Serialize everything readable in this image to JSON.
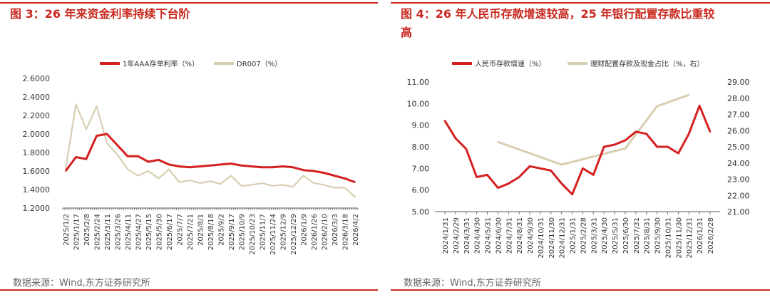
{
  "colors": {
    "accent": "#c8281e",
    "series_red": "#d42020",
    "series_beige": "#d8cfb2",
    "axis": "#595959"
  },
  "left": {
    "title": "图 3：26 年来资金利率持续下台阶",
    "source": "数据来源：Wind,东方证券研究所"
  },
  "right": {
    "title_line1": "图 4：26 年人民币存款增速较高，25 年银行配置存款比重较",
    "title_line2": "高",
    "source": "数据来源：Wind,东方证券研究所"
  },
  "chart_data": [
    {
      "type": "line",
      "title": "",
      "legend_position": "top",
      "ylim": [
        1.2,
        2.6
      ],
      "y_ticks": [
        "2.6000",
        "2.4000",
        "2.2000",
        "2.0000",
        "1.8000",
        "1.6000",
        "1.4000",
        "1.2000"
      ],
      "x_tick_labels": [
        "2025/1/2",
        "2025/1/17",
        "2025/2/8",
        "2025/2/24",
        "2025/3/11",
        "2025/3/26",
        "2025/4/11",
        "2025/4/27",
        "2025/5/15",
        "2025/5/30",
        "2025/6/17",
        "2025/7/7",
        "2025/7/21",
        "2025/8/1",
        "2025/8/18",
        "2025/9/2",
        "2025/9/17",
        "2025/10/9",
        "2025/10/23",
        "2025/11/7",
        "2025/11/24",
        "2025/12/9",
        "2025/12/29",
        "2026/1/9",
        "2026/1/26",
        "2026/2/10",
        "2026/3/3",
        "2026/3/18",
        "2026/4/2"
      ],
      "series": [
        {
          "name": "1年AAA存单利率（%）",
          "color": "#d42020",
          "values": [
            1.6,
            1.75,
            1.73,
            1.98,
            2.0,
            1.88,
            1.76,
            1.76,
            1.7,
            1.72,
            1.67,
            1.65,
            1.64,
            1.65,
            1.66,
            1.67,
            1.68,
            1.66,
            1.65,
            1.64,
            1.64,
            1.65,
            1.64,
            1.61,
            1.6,
            1.58,
            1.55,
            1.52,
            1.48
          ]
        },
        {
          "name": "DR007（%）",
          "color": "#d8cfb2",
          "values": [
            1.62,
            2.32,
            2.05,
            2.3,
            1.9,
            1.78,
            1.62,
            1.55,
            1.6,
            1.52,
            1.62,
            1.48,
            1.5,
            1.47,
            1.49,
            1.46,
            1.55,
            1.44,
            1.45,
            1.47,
            1.44,
            1.45,
            1.43,
            1.55,
            1.47,
            1.45,
            1.42,
            1.42,
            1.32
          ]
        }
      ]
    },
    {
      "type": "line",
      "title": "",
      "legend_position": "top",
      "ylim_left": [
        5.0,
        11.0
      ],
      "ylim_right": [
        21.0,
        29.0
      ],
      "y_ticks_left": [
        "11.00",
        "10.00",
        "9.00",
        "8.00",
        "7.00",
        "6.00",
        "5.00"
      ],
      "y_ticks_right": [
        "29.00",
        "28.00",
        "27.00",
        "26.00",
        "25.00",
        "24.00",
        "23.00",
        "22.00",
        "21.00"
      ],
      "x_tick_labels": [
        "2024/1/31",
        "2024/2/29",
        "2024/3/31",
        "2024/4/30",
        "2024/5/31",
        "2024/6/30",
        "2024/7/31",
        "2024/8/31",
        "2024/9/30",
        "2024/10/31",
        "2024/11/30",
        "2024/12/31",
        "2025/1/31",
        "2025/2/28",
        "2025/3/31",
        "2025/4/30",
        "2025/5/31",
        "2025/6/30",
        "2025/7/31",
        "2025/8/31",
        "2025/9/30",
        "2025/10/31",
        "2025/11/30",
        "2025/12/31",
        "2026/1/31",
        "2026/2/28"
      ],
      "series": [
        {
          "name": "人民币存款增速（%）",
          "color": "#d42020",
          "axis": "left",
          "values": [
            9.2,
            8.4,
            7.9,
            6.6,
            6.7,
            6.1,
            6.3,
            6.6,
            7.1,
            7.0,
            6.9,
            6.3,
            5.8,
            7.0,
            6.7,
            8.0,
            8.1,
            8.3,
            8.7,
            8.6,
            8.0,
            8.0,
            7.7,
            8.6,
            9.9,
            8.7
          ]
        },
        {
          "name": "理财配置存款及现金占比（%，右）",
          "color": "#d8cfb2",
          "axis": "right",
          "points": [
            [
              5,
              25.3
            ],
            [
              11,
              23.9
            ],
            [
              17,
              24.9
            ],
            [
              20,
              27.5
            ],
            [
              23,
              28.2
            ]
          ]
        }
      ]
    }
  ]
}
